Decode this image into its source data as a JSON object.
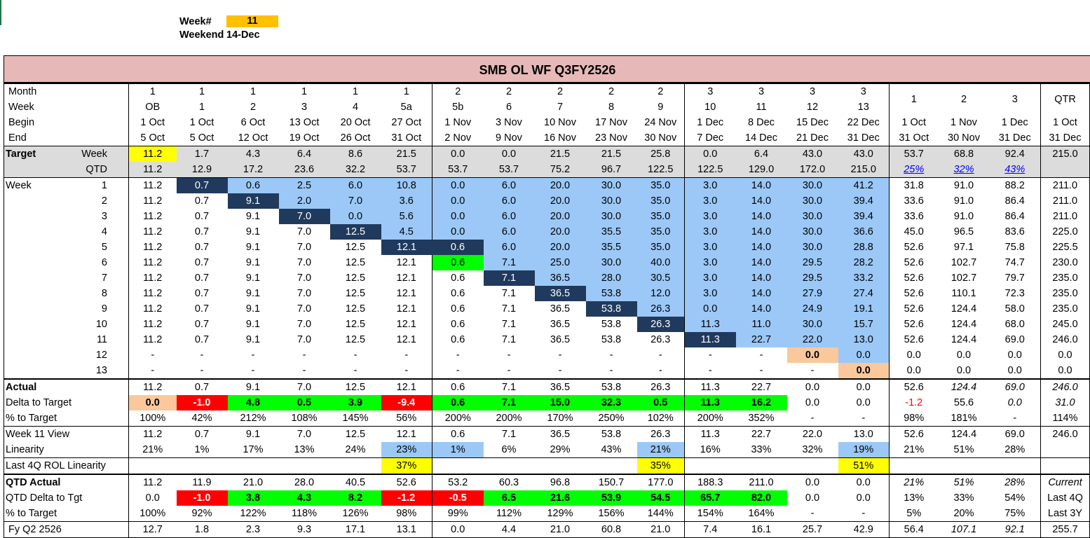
{
  "header": {
    "week_label": "Week#",
    "week_value": "11",
    "weekend_label": "Weekend",
    "weekend_value": "14-Dec"
  },
  "title": "SMB OL WF Q3FY2526",
  "colhead": {
    "month_label": "Month",
    "week_label": "Week",
    "begin_label": "Begin",
    "end_label": "End",
    "months": [
      "1",
      "1",
      "1",
      "1",
      "1",
      "1",
      "2",
      "2",
      "2",
      "2",
      "2",
      "3",
      "3",
      "3",
      "3"
    ],
    "weeks": [
      "OB",
      "1",
      "2",
      "3",
      "4",
      "5a",
      "5b",
      "6",
      "7",
      "8",
      "9",
      "10",
      "11",
      "12",
      "13"
    ],
    "begin": [
      "1 Oct",
      "1 Oct",
      "6 Oct",
      "13 Oct",
      "20 Oct",
      "27 Oct",
      "1 Nov",
      "3 Nov",
      "10 Nov",
      "17 Nov",
      "24 Nov",
      "1 Dec",
      "8 Dec",
      "15 Dec",
      "22 Dec"
    ],
    "end": [
      "5 Oct",
      "5 Oct",
      "12 Oct",
      "19 Oct",
      "26 Oct",
      "31 Oct",
      "2 Nov",
      "9 Nov",
      "16 Nov",
      "23 Nov",
      "30 Nov",
      "7 Dec",
      "14 Dec",
      "21 Dec",
      "31 Dec"
    ],
    "sum_month": [
      "1",
      "2",
      "3"
    ],
    "sum_begin": [
      "1 Oct",
      "1 Nov",
      "1 Dec",
      "1 Oct"
    ],
    "sum_end": [
      "31 Oct",
      "30 Nov",
      "31 Dec",
      "31 Dec"
    ],
    "qtr_label": "QTR"
  },
  "target": {
    "label": "Target",
    "week_sub": "Week",
    "qtd_sub": "QTD",
    "week": [
      "11.2",
      "1.7",
      "4.3",
      "6.4",
      "8.6",
      "21.5",
      "0.0",
      "0.0",
      "21.5",
      "21.5",
      "25.8",
      "0.0",
      "6.4",
      "43.0",
      "43.0"
    ],
    "week_sum": [
      "53.7",
      "68.8",
      "92.4",
      "215.0"
    ],
    "qtd": [
      "11.2",
      "12.9",
      "17.2",
      "23.6",
      "32.2",
      "53.7",
      "53.7",
      "53.7",
      "75.2",
      "96.7",
      "122.5",
      "122.5",
      "129.0",
      "172.0",
      "215.0"
    ],
    "qtd_pct": [
      "25%",
      "32%",
      "43%"
    ]
  },
  "weeks_label": "Week",
  "weeks": [
    {
      "n": "1",
      "v": [
        "11.2",
        "0.7",
        "0.6",
        "2.5",
        "6.0",
        "10.8",
        "0.0",
        "6.0",
        "20.0",
        "30.0",
        "35.0",
        "3.0",
        "14.0",
        "30.0",
        "41.2"
      ],
      "s": [
        "31.8",
        "91.0",
        "88.2",
        "211.0"
      ]
    },
    {
      "n": "2",
      "v": [
        "11.2",
        "0.7",
        "9.1",
        "2.0",
        "7.0",
        "3.6",
        "0.0",
        "6.0",
        "20.0",
        "30.0",
        "35.0",
        "3.0",
        "14.0",
        "30.0",
        "39.4"
      ],
      "s": [
        "33.6",
        "91.0",
        "86.4",
        "211.0"
      ]
    },
    {
      "n": "3",
      "v": [
        "11.2",
        "0.7",
        "9.1",
        "7.0",
        "0.0",
        "5.6",
        "0.0",
        "6.0",
        "20.0",
        "30.0",
        "35.0",
        "3.0",
        "14.0",
        "30.0",
        "39.4"
      ],
      "s": [
        "33.6",
        "91.0",
        "86.4",
        "211.0"
      ]
    },
    {
      "n": "4",
      "v": [
        "11.2",
        "0.7",
        "9.1",
        "7.0",
        "12.5",
        "4.5",
        "0.0",
        "6.0",
        "20.0",
        "35.5",
        "35.0",
        "3.0",
        "14.0",
        "30.0",
        "36.6"
      ],
      "s": [
        "45.0",
        "96.5",
        "83.6",
        "225.0"
      ]
    },
    {
      "n": "5",
      "v": [
        "11.2",
        "0.7",
        "9.1",
        "7.0",
        "12.5",
        "12.1",
        "0.6",
        "6.0",
        "20.0",
        "35.5",
        "35.0",
        "3.0",
        "14.0",
        "30.0",
        "28.8"
      ],
      "s": [
        "52.6",
        "97.1",
        "75.8",
        "225.5"
      ]
    },
    {
      "n": "6",
      "v": [
        "11.2",
        "0.7",
        "9.1",
        "7.0",
        "12.5",
        "12.1",
        "0.6",
        "7.1",
        "25.0",
        "30.0",
        "40.0",
        "3.0",
        "14.0",
        "29.5",
        "28.2"
      ],
      "s": [
        "52.6",
        "102.7",
        "74.7",
        "230.0"
      ]
    },
    {
      "n": "7",
      "v": [
        "11.2",
        "0.7",
        "9.1",
        "7.0",
        "12.5",
        "12.1",
        "0.6",
        "7.1",
        "36.5",
        "28.0",
        "30.5",
        "3.0",
        "14.0",
        "29.5",
        "33.2"
      ],
      "s": [
        "52.6",
        "102.7",
        "79.7",
        "235.0"
      ]
    },
    {
      "n": "8",
      "v": [
        "11.2",
        "0.7",
        "9.1",
        "7.0",
        "12.5",
        "12.1",
        "0.6",
        "7.1",
        "36.5",
        "53.8",
        "12.0",
        "3.0",
        "14.0",
        "27.9",
        "27.4"
      ],
      "s": [
        "52.6",
        "110.1",
        "72.3",
        "235.0"
      ]
    },
    {
      "n": "9",
      "v": [
        "11.2",
        "0.7",
        "9.1",
        "7.0",
        "12.5",
        "12.1",
        "0.6",
        "7.1",
        "36.5",
        "53.8",
        "26.3",
        "0.0",
        "14.0",
        "24.9",
        "19.1"
      ],
      "s": [
        "52.6",
        "124.4",
        "58.0",
        "235.0"
      ]
    },
    {
      "n": "10",
      "v": [
        "11.2",
        "0.7",
        "9.1",
        "7.0",
        "12.5",
        "12.1",
        "0.6",
        "7.1",
        "36.5",
        "53.8",
        "26.3",
        "11.3",
        "11.0",
        "30.0",
        "15.7"
      ],
      "s": [
        "52.6",
        "124.4",
        "68.0",
        "245.0"
      ]
    },
    {
      "n": "11",
      "v": [
        "11.2",
        "0.7",
        "9.1",
        "7.0",
        "12.5",
        "12.1",
        "0.6",
        "7.1",
        "36.5",
        "53.8",
        "26.3",
        "11.3",
        "22.7",
        "22.0",
        "13.0"
      ],
      "s": [
        "52.6",
        "124.4",
        "69.0",
        "246.0"
      ]
    },
    {
      "n": "12",
      "v": [
        "-",
        "-",
        "-",
        "-",
        "-",
        "-",
        "-",
        "-",
        "-",
        "-",
        "-",
        "-",
        "-",
        "0.0",
        "0.0"
      ],
      "s": [
        "0.0",
        "0.0",
        "0.0",
        "0.0"
      ]
    },
    {
      "n": "13",
      "v": [
        "-",
        "-",
        "-",
        "-",
        "-",
        "-",
        "-",
        "-",
        "-",
        "-",
        "-",
        "-",
        "-",
        "-",
        "0.0"
      ],
      "s": [
        "0.0",
        "0.0",
        "0.0",
        "0.0"
      ]
    }
  ],
  "actual": {
    "label": "Actual",
    "v": [
      "11.2",
      "0.7",
      "9.1",
      "7.0",
      "12.5",
      "12.1",
      "0.6",
      "7.1",
      "36.5",
      "53.8",
      "26.3",
      "11.3",
      "22.7",
      "0.0",
      "0.0"
    ],
    "s": [
      "52.6",
      "124.4",
      "69.0",
      "246.0"
    ]
  },
  "delta": {
    "label": "Delta to Target",
    "v": [
      "0.0",
      "-1.0",
      "4.8",
      "0.5",
      "3.9",
      "-9.4",
      "0.6",
      "7.1",
      "15.0",
      "32.3",
      "0.5",
      "11.3",
      "16.2",
      "0.0",
      "0.0"
    ],
    "s": [
      "-1.2",
      "55.6",
      "0.0",
      "31.0"
    ]
  },
  "pct_target": {
    "label": "% to Target",
    "v": [
      "100%",
      "42%",
      "212%",
      "108%",
      "145%",
      "56%",
      "200%",
      "200%",
      "170%",
      "250%",
      "102%",
      "200%",
      "352%",
      "-",
      "-"
    ],
    "s": [
      "98%",
      "181%",
      "-",
      "114%"
    ]
  },
  "week_view": {
    "label": "Week 11 View",
    "v": [
      "11.2",
      "0.7",
      "9.1",
      "7.0",
      "12.5",
      "12.1",
      "0.6",
      "7.1",
      "36.5",
      "53.8",
      "26.3",
      "11.3",
      "22.7",
      "22.0",
      "13.0"
    ],
    "s": [
      "52.6",
      "124.4",
      "69.0",
      "246.0"
    ]
  },
  "linearity": {
    "label": "Linearity",
    "v": [
      "21%",
      "1%",
      "17%",
      "13%",
      "24%",
      "23%",
      "1%",
      "6%",
      "29%",
      "43%",
      "21%",
      "16%",
      "33%",
      "32%",
      "19%"
    ],
    "s": [
      "21%",
      "51%",
      "28%",
      ""
    ]
  },
  "rol": {
    "label": "Last 4Q ROL Linearity",
    "m1": "37%",
    "m2": "35%",
    "m3": "51%"
  },
  "qtd_actual": {
    "label": "QTD Actual",
    "v": [
      "11.2",
      "11.9",
      "21.0",
      "28.0",
      "40.5",
      "52.6",
      "53.2",
      "60.3",
      "96.8",
      "150.7",
      "177.0",
      "188.3",
      "211.0",
      "0.0",
      "0.0"
    ],
    "s": [
      "21%",
      "51%",
      "28%",
      "Current"
    ]
  },
  "qtd_delta": {
    "label": "QTD Delta to Tgt",
    "v": [
      "0.0",
      "-1.0",
      "3.8",
      "4.3",
      "8.2",
      "-1.2",
      "-0.5",
      "6.5",
      "21.6",
      "53.9",
      "54.5",
      "65.7",
      "82.0",
      "0.0",
      "0.0"
    ],
    "s": [
      "13%",
      "33%",
      "54%",
      "Last 4Q"
    ]
  },
  "qtd_pct": {
    "label": "% to Target",
    "v": [
      "100%",
      "92%",
      "122%",
      "118%",
      "126%",
      "98%",
      "99%",
      "112%",
      "129%",
      "156%",
      "144%",
      "154%",
      "164%",
      "-",
      "-"
    ],
    "s": [
      "5%",
      "20%",
      "75%",
      "Last 3Y"
    ]
  },
  "fy": {
    "label": "Fy Q2 2526",
    "v": [
      "12.7",
      "1.8",
      "2.3",
      "9.3",
      "17.1",
      "13.1",
      "0.0",
      "4.4",
      "21.0",
      "60.8",
      "21.0",
      "7.4",
      "16.1",
      "25.7",
      "42.9"
    ],
    "s": [
      "56.4",
      "107.1",
      "92.1",
      "255.7"
    ]
  },
  "colors": {
    "title_bg": "#e6b9b8",
    "blue": "#9bc8f7",
    "dark": "#203a5d",
    "green": "#00ff00",
    "red": "#ff0000",
    "peach": "#fac89b",
    "yellow": "#ffff00",
    "week_badge": "#ffc000"
  }
}
